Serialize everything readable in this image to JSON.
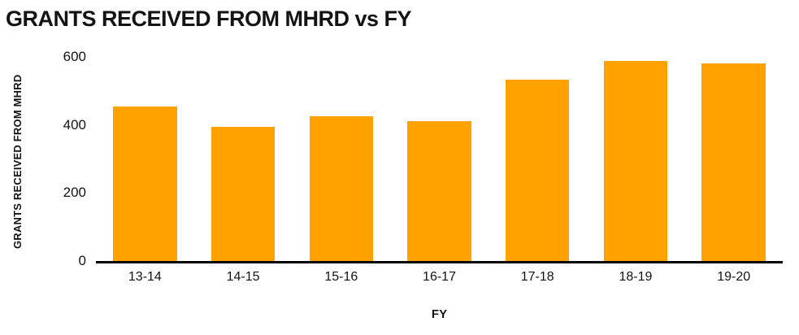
{
  "chart_data": {
    "type": "bar",
    "title": "GRANTS RECEIVED FROM MHRD vs FY",
    "xlabel": "FY",
    "ylabel": "GRANTS RECEIVED FROM MHRD",
    "categories": [
      "13-14",
      "14-15",
      "15-16",
      "16-17",
      "17-18",
      "18-19",
      "19-20"
    ],
    "values": [
      455,
      395,
      425,
      412,
      532,
      588,
      582
    ],
    "ylim": [
      0,
      600
    ],
    "yticks": [
      0,
      200,
      400,
      600
    ],
    "bar_color": "#FFA200",
    "axis_line_color": "#000000",
    "grid": false,
    "legend": false,
    "background": "#ffffff"
  }
}
